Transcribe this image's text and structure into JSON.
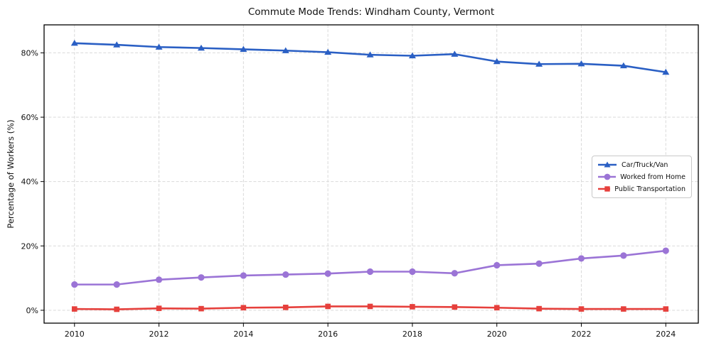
{
  "chart_data": {
    "type": "line",
    "title": "Commute Mode Trends: Windham County, Vermont",
    "xlabel": "",
    "ylabel": "Percentage of Workers (%)",
    "x": [
      2010,
      2011,
      2012,
      2013,
      2014,
      2015,
      2016,
      2017,
      2018,
      2019,
      2020,
      2021,
      2022,
      2023,
      2024
    ],
    "series": [
      {
        "name": "Car/Truck/Van",
        "color": "#2a5fc4",
        "marker": "triangle",
        "values": [
          83.0,
          82.5,
          81.8,
          81.5,
          81.1,
          80.7,
          80.2,
          79.4,
          79.1,
          79.6,
          77.3,
          76.5,
          76.6,
          76.0,
          74.0
        ]
      },
      {
        "name": "Worked from Home",
        "color": "#9b74d6",
        "marker": "circle",
        "values": [
          8.0,
          8.0,
          9.5,
          10.2,
          10.8,
          11.1,
          11.4,
          12.0,
          12.0,
          11.5,
          14.0,
          14.5,
          16.1,
          17.0,
          18.5
        ]
      },
      {
        "name": "Public Transportation",
        "color": "#e6403c",
        "marker": "square",
        "values": [
          0.4,
          0.3,
          0.6,
          0.5,
          0.8,
          0.9,
          1.2,
          1.2,
          1.1,
          1.0,
          0.8,
          0.5,
          0.4,
          0.4,
          0.4
        ]
      }
    ],
    "xlim": [
      2009.28,
      2024.77
    ],
    "ylim": [
      -4.0,
      88.7
    ],
    "x_ticks": [
      2010,
      2012,
      2014,
      2016,
      2018,
      2020,
      2022,
      2024
    ],
    "y_ticks": [
      0,
      20,
      40,
      60,
      80
    ],
    "y_tick_labels": [
      "0%",
      "20%",
      "40%",
      "60%",
      "80%"
    ],
    "grid": true,
    "grid_color": "#d9d9d9",
    "frame_color": "#000000",
    "legend_position": "center right"
  }
}
